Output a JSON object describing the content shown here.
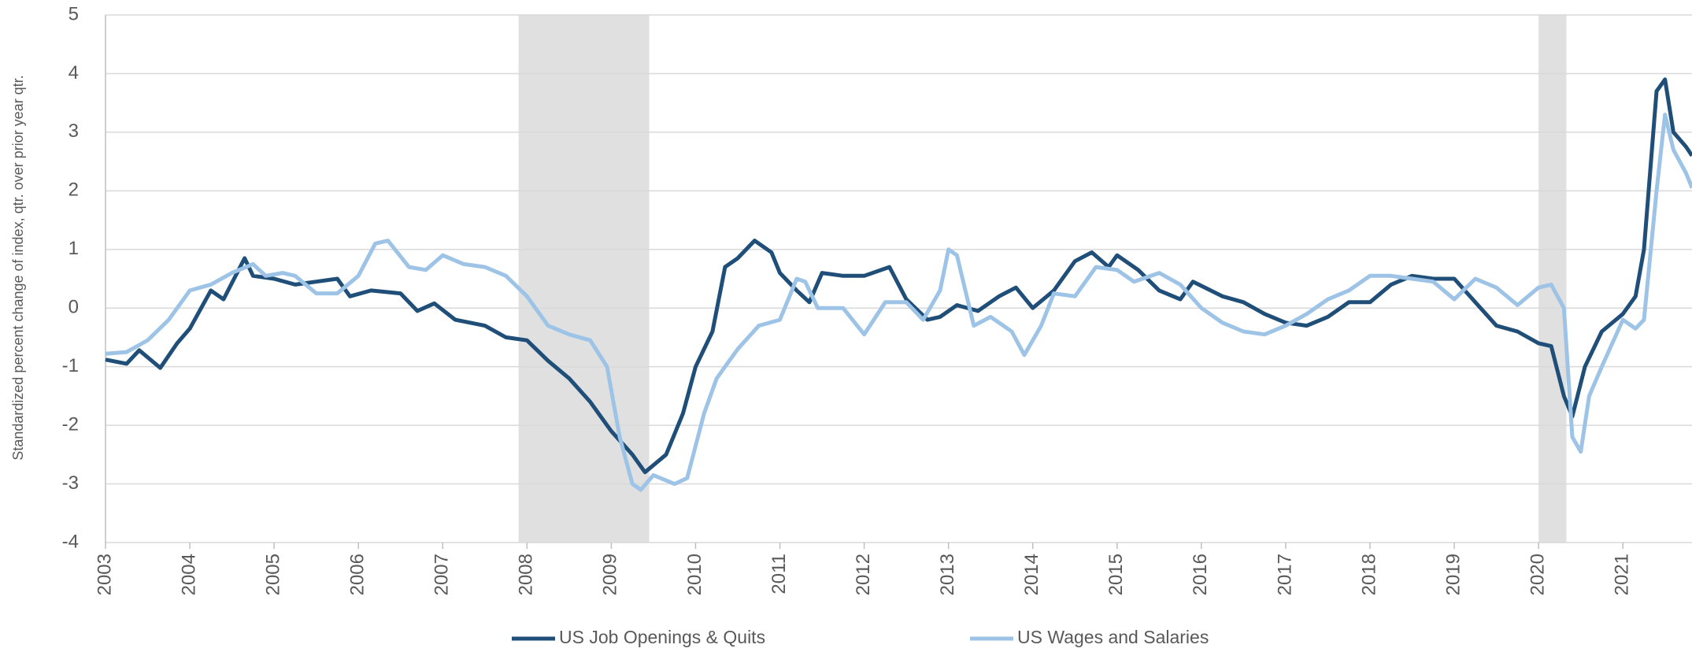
{
  "chart_data": {
    "type": "line",
    "y_label": "Standardized percent change of index, qtr. over prior year qtr.",
    "xlim": [
      2003,
      2021.82
    ],
    "ylim": [
      -4,
      5
    ],
    "xticks": [
      2003,
      2004,
      2005,
      2006,
      2007,
      2008,
      2009,
      2010,
      2011,
      2012,
      2013,
      2014,
      2015,
      2016,
      2017,
      2018,
      2019,
      2020,
      2021
    ],
    "yticks": [
      -4,
      -3,
      -2,
      -1,
      0,
      1,
      2,
      3,
      4,
      5
    ],
    "grid": true,
    "shaded_regions": [
      [
        2007.9,
        2009.45
      ],
      [
        2020.0,
        2020.33
      ]
    ],
    "shade_color": "#e0e0e0",
    "legend": "bottom",
    "series": [
      {
        "name": "US Job Openings & Quits",
        "color": "#1f4e79",
        "x": [
          2003.0,
          2003.25,
          2003.4,
          2003.65,
          2003.85,
          2004.0,
          2004.25,
          2004.4,
          2004.65,
          2004.75,
          2005.0,
          2005.25,
          2005.5,
          2005.75,
          2005.9,
          2006.15,
          2006.5,
          2006.7,
          2006.9,
          2007.15,
          2007.5,
          2007.75,
          2008.0,
          2008.25,
          2008.5,
          2008.75,
          2009.0,
          2009.25,
          2009.4,
          2009.65,
          2009.85,
          2010.0,
          2010.2,
          2010.35,
          2010.5,
          2010.7,
          2010.9,
          2011.0,
          2011.2,
          2011.35,
          2011.5,
          2011.75,
          2012.0,
          2012.3,
          2012.5,
          2012.75,
          2012.9,
          2013.1,
          2013.35,
          2013.6,
          2013.8,
          2014.0,
          2014.25,
          2014.5,
          2014.7,
          2014.9,
          2015.0,
          2015.25,
          2015.5,
          2015.75,
          2015.9,
          2016.25,
          2016.5,
          2016.75,
          2017.0,
          2017.25,
          2017.5,
          2017.75,
          2018.0,
          2018.25,
          2018.5,
          2018.75,
          2019.0,
          2019.25,
          2019.5,
          2019.75,
          2020.0,
          2020.15,
          2020.3,
          2020.4,
          2020.55,
          2020.75,
          2021.0,
          2021.15,
          2021.25,
          2021.4,
          2021.5,
          2021.6,
          2021.75,
          2021.82
        ],
        "values": [
          -0.88,
          -0.95,
          -0.72,
          -1.02,
          -0.6,
          -0.35,
          0.3,
          0.15,
          0.85,
          0.55,
          0.5,
          0.4,
          0.45,
          0.5,
          0.2,
          0.3,
          0.25,
          -0.05,
          0.08,
          -0.2,
          -0.3,
          -0.5,
          -0.55,
          -0.9,
          -1.2,
          -1.6,
          -2.1,
          -2.5,
          -2.8,
          -2.5,
          -1.8,
          -1.0,
          -0.4,
          0.7,
          0.85,
          1.15,
          0.95,
          0.6,
          0.3,
          0.1,
          0.6,
          0.55,
          0.55,
          0.7,
          0.15,
          -0.2,
          -0.15,
          0.05,
          -0.05,
          0.2,
          0.35,
          0.0,
          0.3,
          0.8,
          0.95,
          0.7,
          0.9,
          0.65,
          0.3,
          0.15,
          0.45,
          0.2,
          0.1,
          -0.1,
          -0.25,
          -0.3,
          -0.15,
          0.1,
          0.1,
          0.4,
          0.55,
          0.5,
          0.5,
          0.1,
          -0.3,
          -0.4,
          -0.6,
          -0.65,
          -1.5,
          -1.85,
          -1.0,
          -0.4,
          -0.1,
          0.2,
          1.0,
          3.7,
          3.9,
          3.0,
          2.75,
          2.6
        ]
      },
      {
        "name": "US Wages and Salaries",
        "color": "#9dc3e6",
        "x": [
          2003.0,
          2003.25,
          2003.5,
          2003.75,
          2004.0,
          2004.25,
          2004.5,
          2004.75,
          2004.9,
          2005.1,
          2005.25,
          2005.5,
          2005.75,
          2006.0,
          2006.2,
          2006.35,
          2006.6,
          2006.8,
          2007.0,
          2007.25,
          2007.5,
          2007.75,
          2008.0,
          2008.25,
          2008.5,
          2008.75,
          2008.95,
          2009.1,
          2009.25,
          2009.35,
          2009.5,
          2009.75,
          2009.9,
          2010.1,
          2010.25,
          2010.5,
          2010.75,
          2011.0,
          2011.2,
          2011.3,
          2011.45,
          2011.75,
          2012.0,
          2012.25,
          2012.5,
          2012.7,
          2012.9,
          2013.0,
          2013.1,
          2013.3,
          2013.5,
          2013.75,
          2013.9,
          2014.1,
          2014.25,
          2014.5,
          2014.75,
          2015.0,
          2015.2,
          2015.5,
          2015.75,
          2016.0,
          2016.25,
          2016.5,
          2016.75,
          2017.0,
          2017.25,
          2017.5,
          2017.75,
          2018.0,
          2018.25,
          2018.5,
          2018.75,
          2019.0,
          2019.25,
          2019.5,
          2019.75,
          2020.0,
          2020.15,
          2020.3,
          2020.4,
          2020.5,
          2020.6,
          2020.75,
          2021.0,
          2021.15,
          2021.25,
          2021.4,
          2021.5,
          2021.6,
          2021.75,
          2021.82
        ],
        "values": [
          -0.78,
          -0.75,
          -0.55,
          -0.2,
          0.3,
          0.4,
          0.6,
          0.75,
          0.55,
          0.6,
          0.55,
          0.25,
          0.25,
          0.55,
          1.1,
          1.15,
          0.7,
          0.65,
          0.9,
          0.75,
          0.7,
          0.55,
          0.2,
          -0.3,
          -0.45,
          -0.55,
          -1.0,
          -2.2,
          -3.0,
          -3.1,
          -2.85,
          -3.0,
          -2.9,
          -1.8,
          -1.2,
          -0.7,
          -0.3,
          -0.2,
          0.5,
          0.45,
          0.0,
          0.0,
          -0.45,
          0.1,
          0.1,
          -0.2,
          0.3,
          1.0,
          0.9,
          -0.3,
          -0.15,
          -0.4,
          -0.8,
          -0.3,
          0.25,
          0.2,
          0.7,
          0.65,
          0.45,
          0.6,
          0.4,
          0.0,
          -0.25,
          -0.4,
          -0.45,
          -0.3,
          -0.1,
          0.15,
          0.3,
          0.55,
          0.55,
          0.5,
          0.45,
          0.15,
          0.5,
          0.35,
          0.05,
          0.35,
          0.4,
          0.0,
          -2.2,
          -2.45,
          -1.5,
          -1.0,
          -0.2,
          -0.35,
          -0.2,
          2.0,
          3.3,
          2.7,
          2.3,
          2.05
        ]
      }
    ]
  }
}
